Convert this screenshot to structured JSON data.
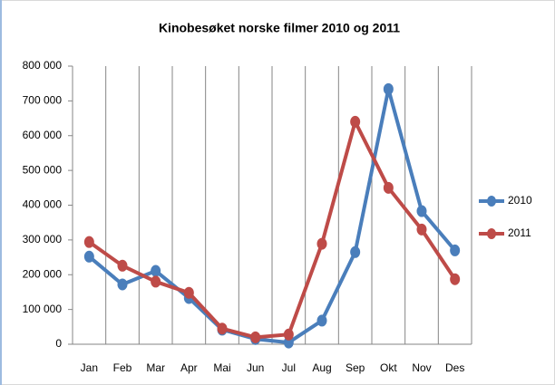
{
  "chart_data": {
    "type": "line",
    "title": "Kinobesøket norske filmer 2010 og 2011",
    "categories": [
      "Jan",
      "Feb",
      "Mar",
      "Apr",
      "Mai",
      "Jun",
      "Jul",
      "Aug",
      "Sep",
      "Okt",
      "Nov",
      "Des"
    ],
    "series": [
      {
        "name": "2010",
        "color": "#4a7ebb",
        "values": [
          252000,
          172000,
          211000,
          133000,
          42000,
          15000,
          5000,
          68000,
          265000,
          734000,
          383000,
          270000
        ]
      },
      {
        "name": "2011",
        "color": "#be4b48",
        "values": [
          294000,
          226000,
          180000,
          148000,
          45000,
          20000,
          28000,
          289000,
          640000,
          450000,
          330000,
          187000
        ]
      }
    ],
    "ylim": [
      0,
      800000
    ],
    "yticks": [
      0,
      {
        "value": 100000,
        "label": "100 000"
      },
      {
        "value": 200000,
        "label": "200 000"
      },
      {
        "value": 300000,
        "label": "300 000"
      },
      {
        "value": 400000,
        "label": "400 000"
      },
      {
        "value": 500000,
        "label": "500 000"
      },
      {
        "value": 600000,
        "label": "600 000"
      },
      {
        "value": 700000,
        "label": "700 000"
      },
      {
        "value": 800000,
        "label": "800 000"
      }
    ],
    "grid": "x",
    "legend": "right"
  }
}
